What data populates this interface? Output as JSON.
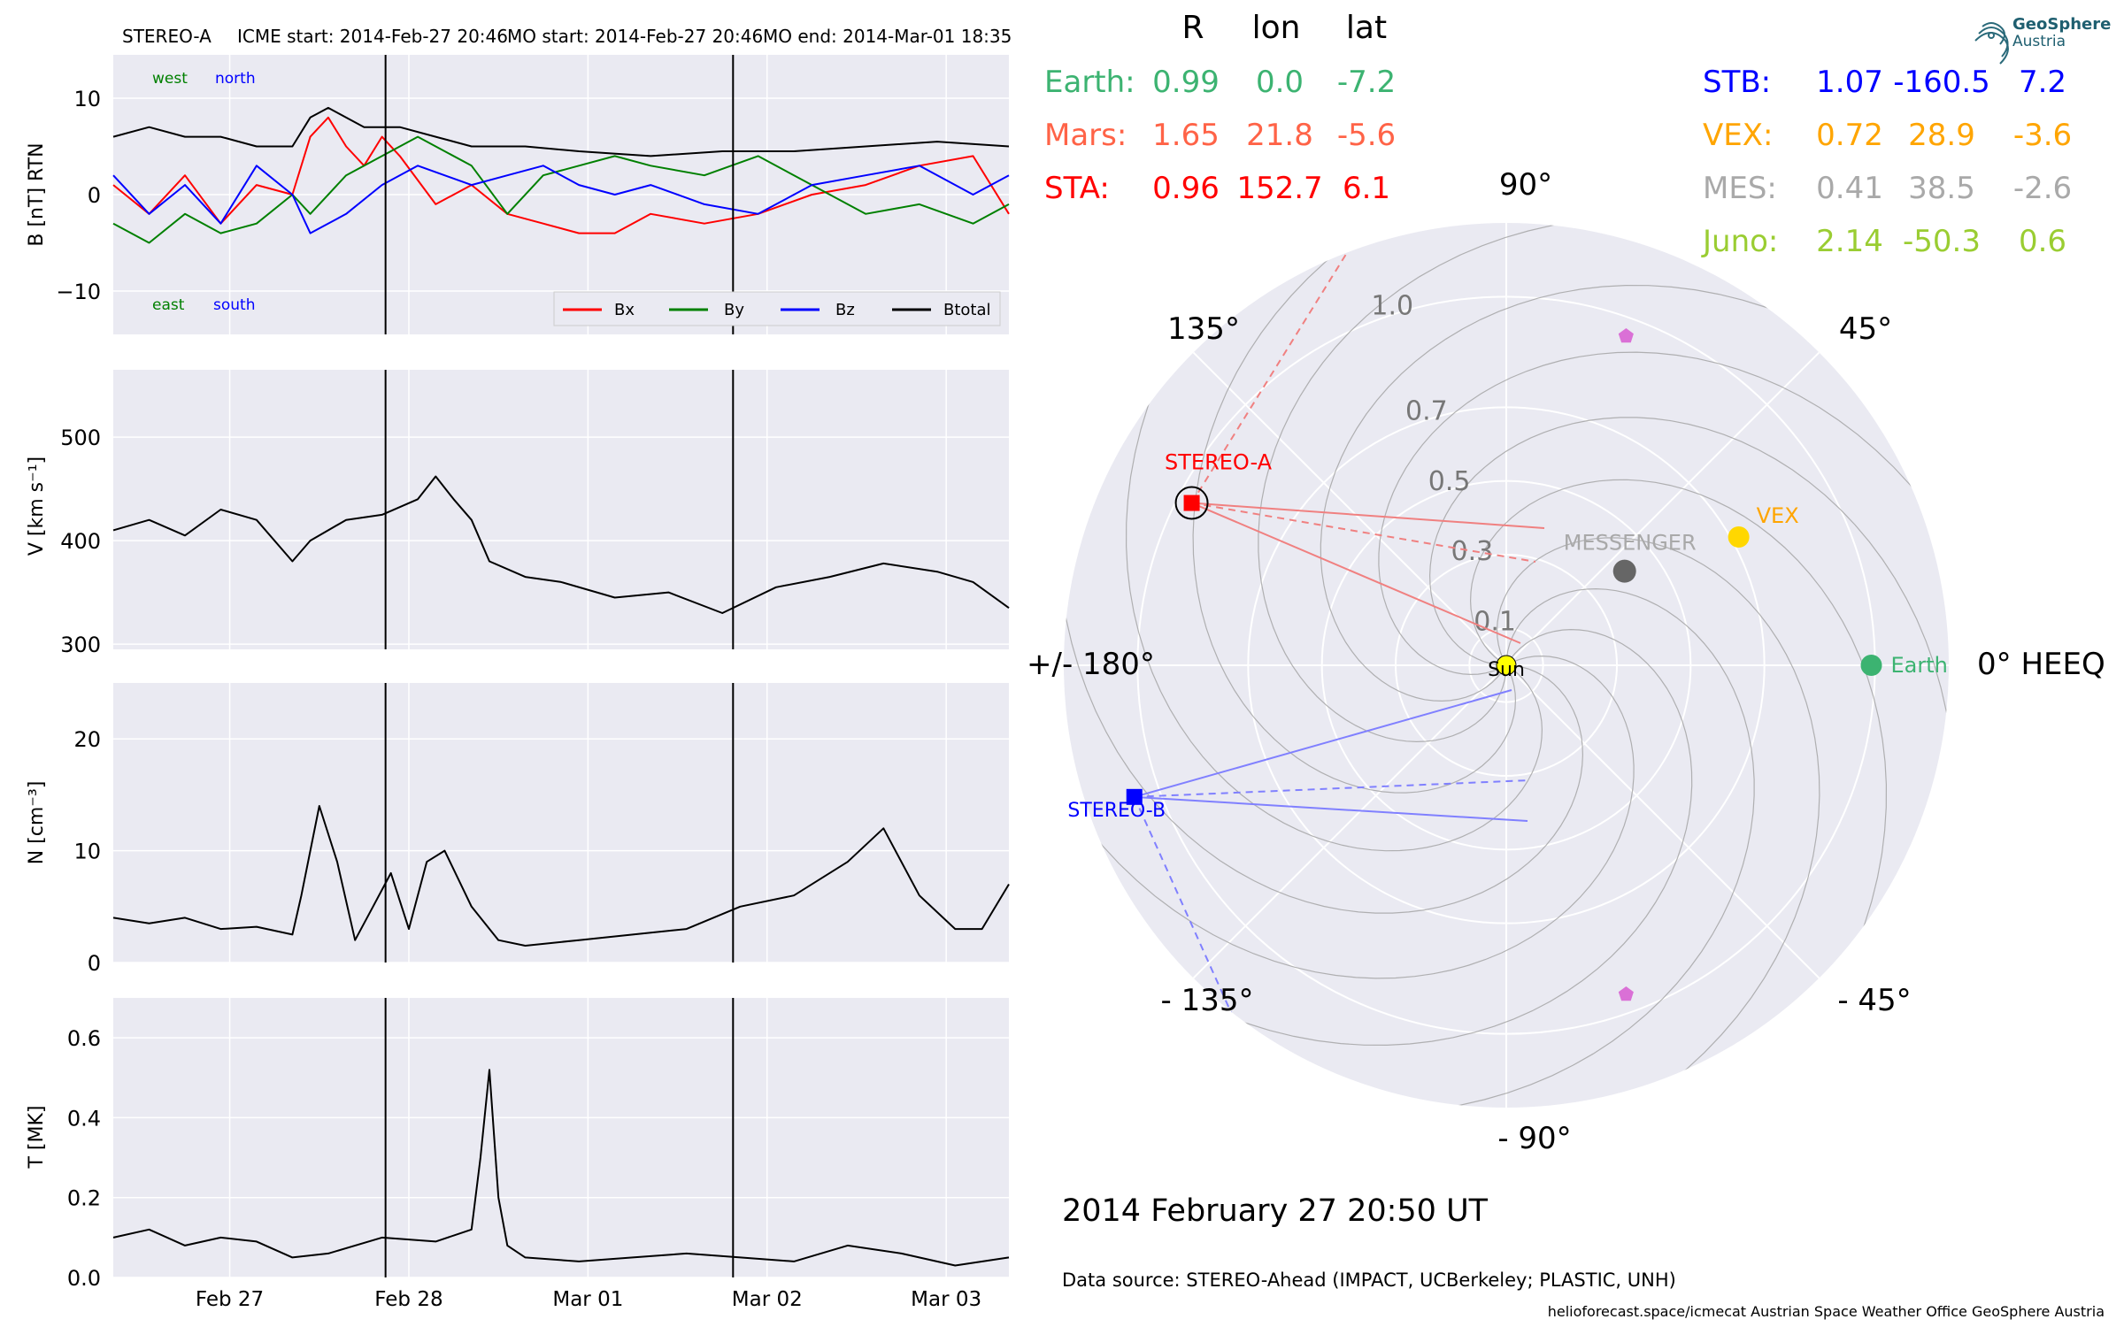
{
  "header": {
    "spacecraft": "STEREO-A",
    "icme_start": "ICME start: 2014-Feb-27 20:46",
    "mo_start": "MO start: 2014-Feb-27 20:46",
    "mo_end": "MO end: 2014-Mar-01 18:35"
  },
  "colors": {
    "plot_bg": "#eaeaf2",
    "grid": "#ffffff",
    "bx": "#ff0000",
    "by": "#008000",
    "bz": "#0000ff",
    "bt": "#000000",
    "earth": "#3cb371",
    "mars": "#ff6347",
    "sta": "#ff0000",
    "stb": "#0000ff",
    "vex": "#ffa500",
    "mes": "#a9a9a9",
    "juno": "#9acd32",
    "sun": "#ffff00",
    "messenger_dot": "#666666",
    "pentagon": "#da70d6"
  },
  "chart_data": [
    {
      "type": "line",
      "ylabel": "B [nT] RTN",
      "ylim": [
        -14.5,
        14.5
      ],
      "yticks": [
        -10,
        0,
        10
      ],
      "ytick_labels": [
        "−10",
        "0",
        "10"
      ],
      "legend": [
        "Bx",
        "By",
        "Bz",
        "Btotal"
      ],
      "legend_placement": "lower-right",
      "annotations": {
        "west": "west",
        "north": "north",
        "east": "east",
        "south": "south"
      },
      "series": [
        {
          "name": "Bx",
          "color": "#ff0000",
          "x": [
            0,
            0.2,
            0.4,
            0.6,
            0.8,
            1.0,
            1.1,
            1.2,
            1.3,
            1.4,
            1.5,
            1.6,
            1.8,
            2.0,
            2.2,
            2.4,
            2.6,
            2.8,
            3.0,
            3.3,
            3.6,
            3.9,
            4.2,
            4.5,
            4.8,
            5.0
          ],
          "y": [
            1,
            -2,
            2,
            -3,
            1,
            0,
            6,
            8,
            5,
            3,
            6,
            4,
            -1,
            1,
            -2,
            -3,
            -4,
            -4,
            -2,
            -3,
            -2,
            0,
            1,
            3,
            4,
            -2
          ]
        },
        {
          "name": "By",
          "color": "#008000",
          "x": [
            0,
            0.2,
            0.4,
            0.6,
            0.8,
            1.0,
            1.1,
            1.3,
            1.5,
            1.7,
            2.0,
            2.2,
            2.4,
            2.6,
            2.8,
            3.0,
            3.3,
            3.6,
            3.9,
            4.2,
            4.5,
            4.8,
            5.0
          ],
          "y": [
            -3,
            -5,
            -2,
            -4,
            -3,
            0,
            -2,
            2,
            4,
            6,
            3,
            -2,
            2,
            3,
            4,
            3,
            2,
            4,
            1,
            -2,
            -1,
            -3,
            -1
          ]
        },
        {
          "name": "Bz",
          "color": "#0000ff",
          "x": [
            0,
            0.2,
            0.4,
            0.6,
            0.8,
            1.0,
            1.1,
            1.3,
            1.5,
            1.7,
            2.0,
            2.2,
            2.4,
            2.6,
            2.8,
            3.0,
            3.3,
            3.6,
            3.9,
            4.2,
            4.5,
            4.8,
            5.0
          ],
          "y": [
            2,
            -2,
            1,
            -3,
            3,
            0,
            -4,
            -2,
            1,
            3,
            1,
            2,
            3,
            1,
            0,
            1,
            -1,
            -2,
            1,
            2,
            3,
            0,
            2
          ]
        },
        {
          "name": "Btotal",
          "color": "#000000",
          "x": [
            0,
            0.2,
            0.4,
            0.6,
            0.8,
            1.0,
            1.1,
            1.2,
            1.4,
            1.6,
            1.8,
            2.0,
            2.3,
            2.6,
            3.0,
            3.4,
            3.8,
            4.2,
            4.6,
            5.0
          ],
          "y": [
            6,
            7,
            6,
            6,
            5,
            5,
            8,
            9,
            7,
            7,
            6,
            5,
            5,
            4.5,
            4,
            4.5,
            4.5,
            5,
            5.5,
            5
          ]
        }
      ]
    },
    {
      "type": "line",
      "ylabel": "V [km s⁻¹]",
      "ylim": [
        295,
        565
      ],
      "yticks": [
        300,
        400,
        500
      ],
      "ytick_labels": [
        "300",
        "400",
        "500"
      ],
      "series": [
        {
          "name": "V",
          "color": "#000000",
          "x": [
            0,
            0.2,
            0.4,
            0.6,
            0.8,
            1.0,
            1.1,
            1.3,
            1.5,
            1.7,
            1.8,
            1.9,
            2.0,
            2.1,
            2.3,
            2.5,
            2.8,
            3.1,
            3.4,
            3.7,
            4.0,
            4.3,
            4.6,
            4.8,
            5.0
          ],
          "y": [
            410,
            420,
            405,
            430,
            420,
            380,
            400,
            420,
            425,
            440,
            462,
            440,
            420,
            380,
            365,
            360,
            345,
            350,
            330,
            355,
            365,
            378,
            370,
            360,
            335
          ]
        }
      ]
    },
    {
      "type": "line",
      "ylabel": "N [cm⁻³]",
      "ylim": [
        0,
        25
      ],
      "yticks": [
        0,
        10,
        20
      ],
      "ytick_labels": [
        "0",
        "10",
        "20"
      ],
      "series": [
        {
          "name": "N",
          "color": "#000000",
          "x": [
            0,
            0.2,
            0.4,
            0.6,
            0.8,
            1.0,
            1.05,
            1.15,
            1.25,
            1.35,
            1.45,
            1.55,
            1.65,
            1.75,
            1.85,
            2.0,
            2.15,
            2.3,
            2.6,
            2.9,
            3.2,
            3.5,
            3.8,
            4.1,
            4.3,
            4.5,
            4.7,
            4.85,
            5.0
          ],
          "y": [
            4,
            3.5,
            4,
            3,
            3.2,
            2.5,
            6,
            14,
            9,
            2,
            5,
            8,
            3,
            9,
            10,
            5,
            2,
            1.5,
            2,
            2.5,
            3,
            5,
            6,
            9,
            12,
            6,
            3,
            3,
            7
          ]
        }
      ]
    },
    {
      "type": "line",
      "ylabel": "T [MK]",
      "ylim": [
        0,
        0.7
      ],
      "yticks": [
        0.0,
        0.2,
        0.4,
        0.6
      ],
      "ytick_labels": [
        "0.0",
        "0.2",
        "0.4",
        "0.6"
      ],
      "xticks": [
        0.65,
        1.65,
        2.65,
        3.65,
        4.65
      ],
      "xtick_labels": [
        "Feb 27",
        "Feb 28",
        "Mar 01",
        "Mar 02",
        "Mar 03"
      ],
      "series": [
        {
          "name": "T",
          "color": "#000000",
          "x": [
            0,
            0.2,
            0.4,
            0.6,
            0.8,
            1.0,
            1.2,
            1.5,
            1.8,
            2.0,
            2.05,
            2.1,
            2.15,
            2.2,
            2.3,
            2.6,
            2.9,
            3.2,
            3.5,
            3.8,
            4.1,
            4.4,
            4.7,
            5.0
          ],
          "y": [
            0.1,
            0.12,
            0.08,
            0.1,
            0.09,
            0.05,
            0.06,
            0.1,
            0.09,
            0.12,
            0.3,
            0.52,
            0.2,
            0.08,
            0.05,
            0.04,
            0.05,
            0.06,
            0.05,
            0.04,
            0.08,
            0.06,
            0.03,
            0.05
          ]
        }
      ]
    },
    {
      "type": "scatter",
      "subtype": "polar",
      "angle_labels": {
        "a90": "90°",
        "a45": "45°",
        "a0": "0° HEEQ",
        "am45": "- 45°",
        "am90": "- 90°",
        "am135": "- 135°",
        "a180": "+/- 180°",
        "a135": "135°"
      },
      "rlim": [
        0,
        1.2
      ],
      "radial_ticks": [
        0.1,
        0.3,
        0.5,
        0.7,
        1.0
      ],
      "radial_tick_labels": [
        "0.1",
        "0.3",
        "0.5",
        "0.7",
        "1.0"
      ],
      "bodies": [
        {
          "name": "Sun",
          "r": 0.0,
          "lon": 0.0
        },
        {
          "name": "Earth",
          "r": 0.99,
          "lon": 0.0
        },
        {
          "name": "VEX",
          "r": 0.72,
          "lon": 28.9
        },
        {
          "name": "MESSENGER",
          "r": 0.41,
          "lon": 38.5
        },
        {
          "name": "STEREO-A",
          "r": 0.96,
          "lon": 152.7
        },
        {
          "name": "STEREO-B",
          "r": 1.07,
          "lon": -160.5
        },
        {
          "name": "",
          "r": 0.95,
          "lon": 70
        },
        {
          "name": "",
          "r": 0.95,
          "lon": -70
        }
      ]
    }
  ],
  "positions": {
    "header": {
      "r": "R",
      "lon": "lon",
      "lat": "lat"
    },
    "left": [
      {
        "name": "Earth:",
        "r": "0.99",
        "lon": "0.0",
        "lat": "-7.2",
        "color": "#3cb371"
      },
      {
        "name": "Mars:",
        "r": "1.65",
        "lon": "21.8",
        "lat": "-5.6",
        "color": "#ff6347"
      },
      {
        "name": "STA:",
        "r": "0.96",
        "lon": "152.7",
        "lat": "6.1",
        "color": "#ff0000"
      }
    ],
    "right": [
      {
        "name": "STB:",
        "r": "1.07",
        "lon": "-160.5",
        "lat": "7.2",
        "color": "#0000ff"
      },
      {
        "name": "VEX:",
        "r": "0.72",
        "lon": "28.9",
        "lat": "-3.6",
        "color": "#ffa500"
      },
      {
        "name": "MES:",
        "r": "0.41",
        "lon": "38.5",
        "lat": "-2.6",
        "color": "#a9a9a9"
      },
      {
        "name": "Juno:",
        "r": "2.14",
        "lon": "-50.3",
        "lat": "0.6",
        "color": "#9acd32"
      }
    ]
  },
  "date_label": "2014 February 27  20:50 UT",
  "data_source": "Data source: STEREO-Ahead (IMPACT, UCBerkeley; PLASTIC, UNH)",
  "footer": "helioforecast.space/icmecat   Austrian Space Weather Office   GeoSphere Austria",
  "logo": {
    "line1": "GeoSphere",
    "line2": "Austria",
    "icon": "geosphere-logo-icon"
  }
}
